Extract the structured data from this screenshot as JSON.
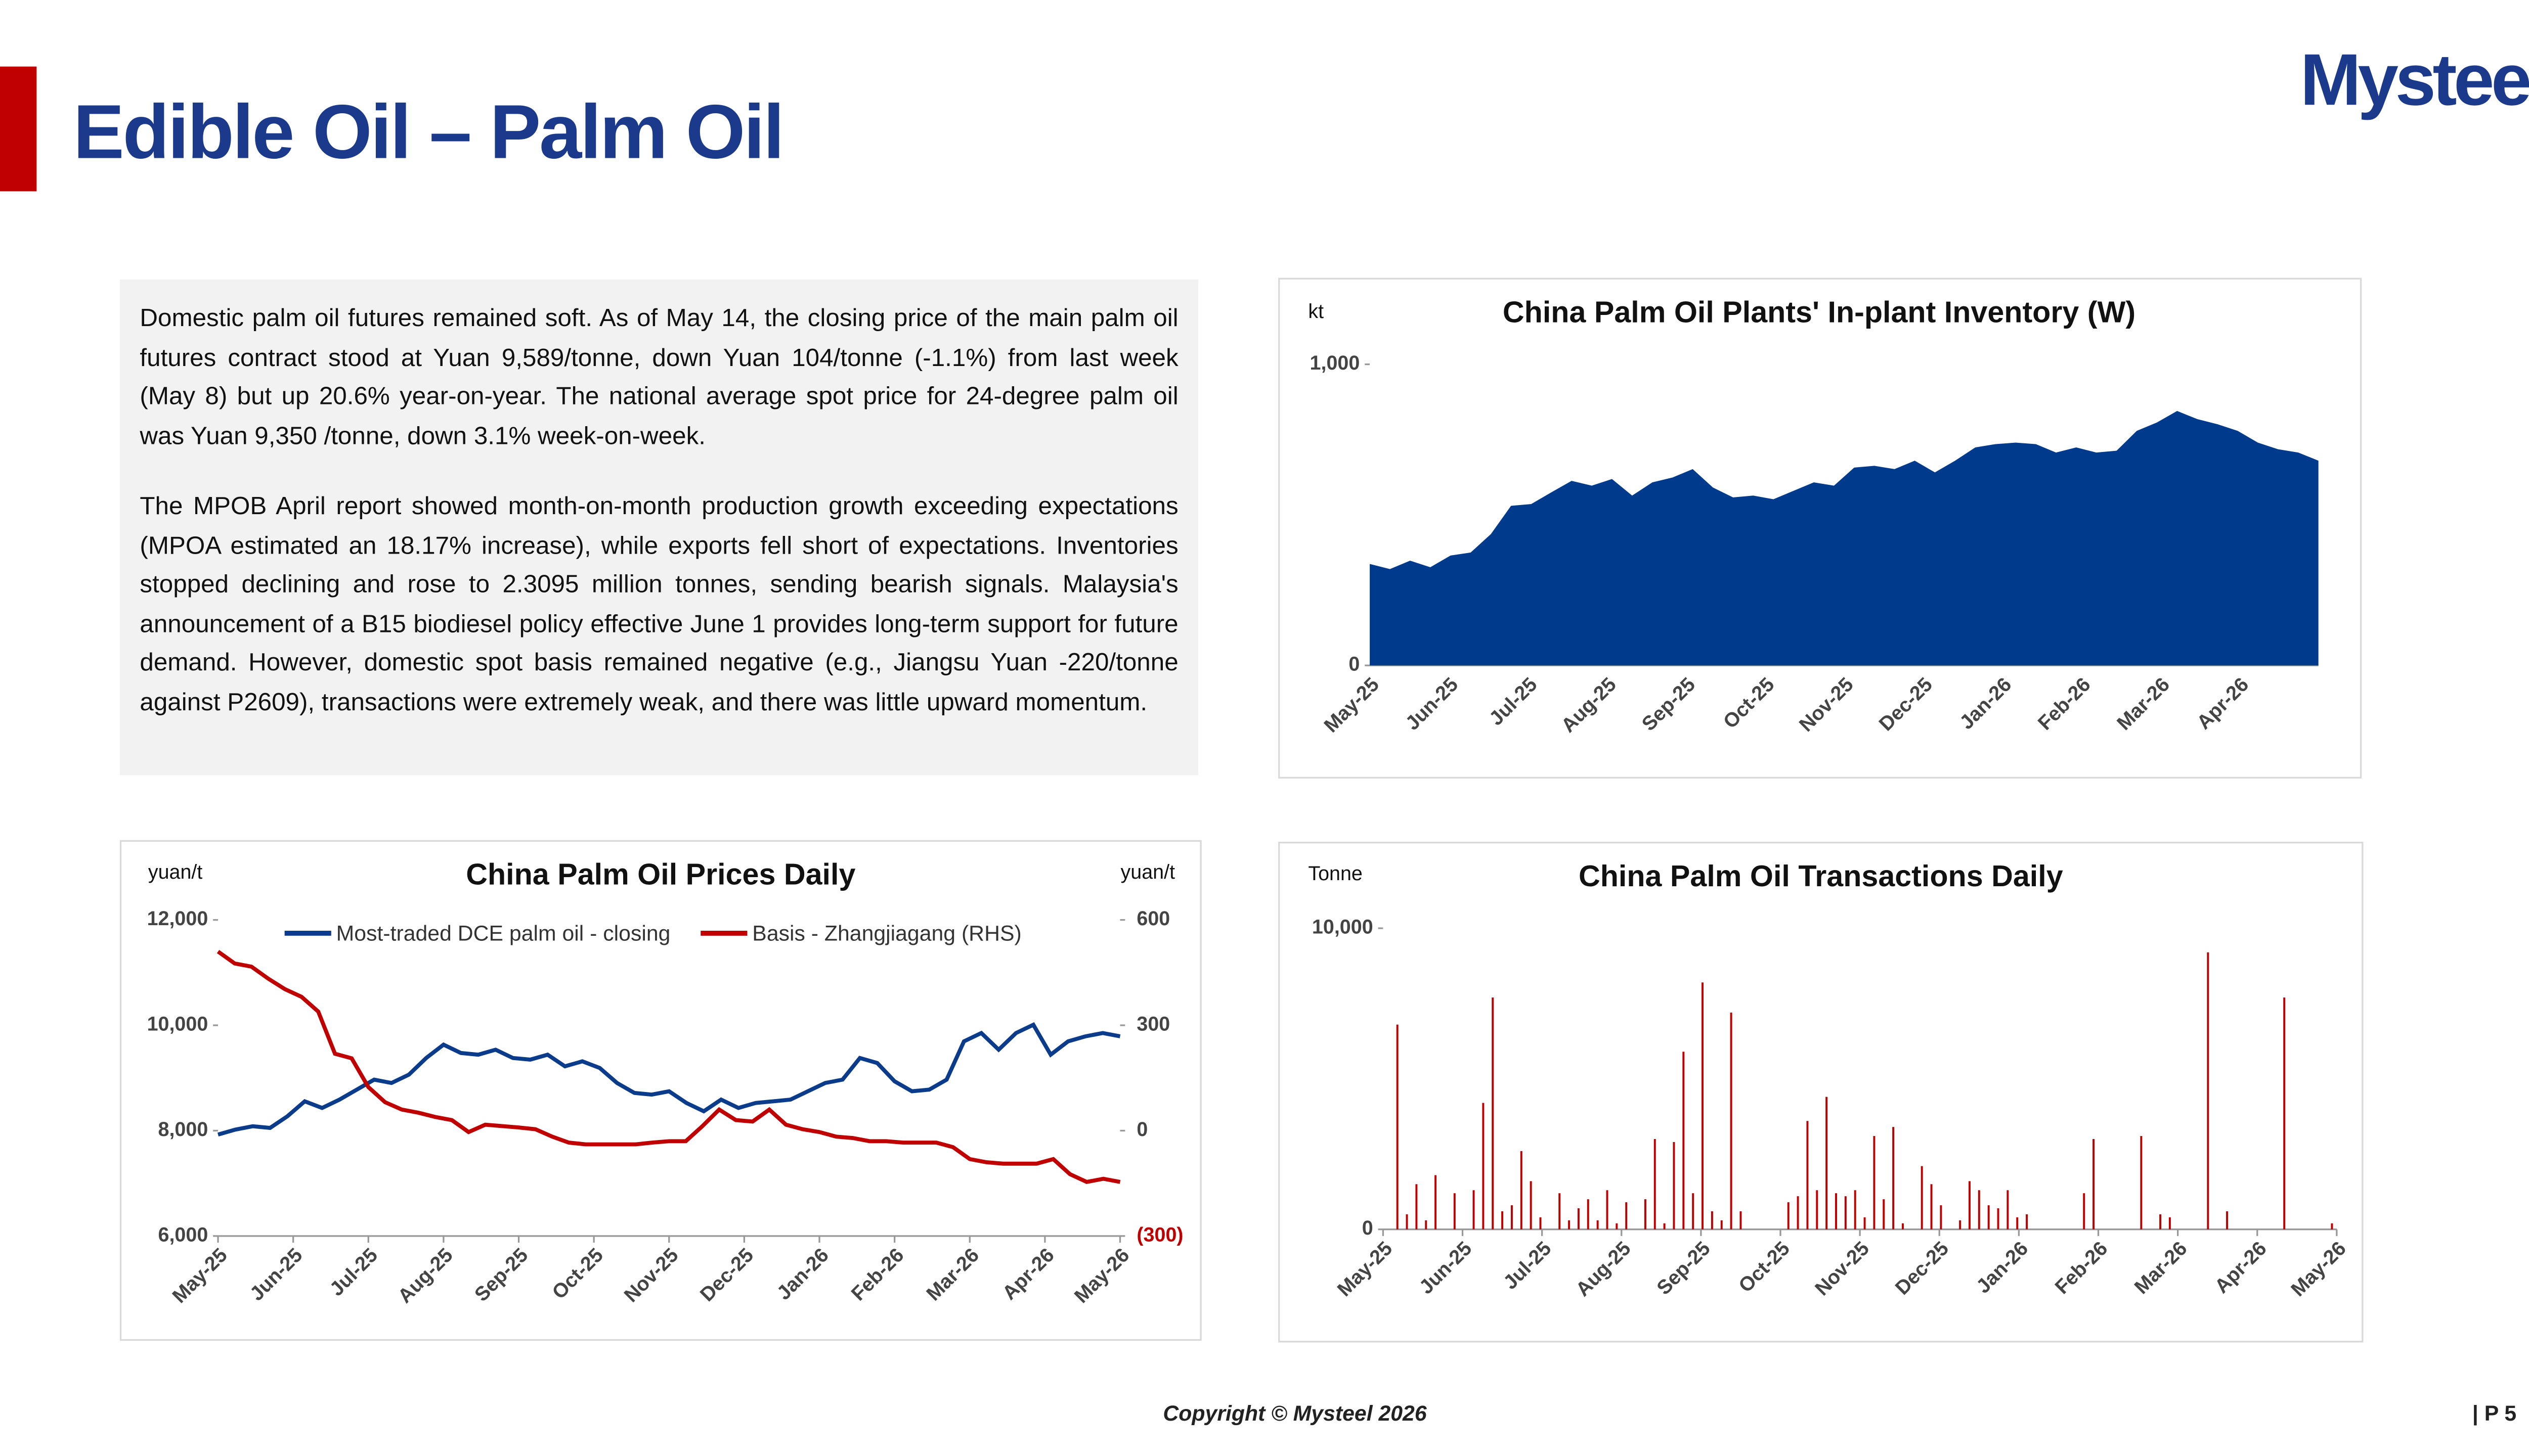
{
  "header": {
    "title": "Edible Oil – Palm Oil",
    "logo": "Mysteel"
  },
  "text": {
    "paragraphs": [
      "Domestic palm oil futures remained soft. As of May 14, the closing price of the main palm oil futures contract stood at Yuan 9,589/tonne, down Yuan 104/tonne (-1.1%) from last week (May 8) but up 20.6% year-on-year. The national average spot price for 24-degree palm oil was Yuan 9,350 /tonne, down 3.1% week-on-week.",
      "The MPOB April report showed month-on-month production growth exceeding expectations (MPOA estimated an 18.17% increase), while exports fell short of expectations. Inventories stopped declining and rose to 2.3095 million tonnes, sending bearish signals. Malaysia's announcement of a B15 biodiesel policy effective June 1 provides long-term support for future demand. However, domestic spot basis remained negative (e.g., Jiangsu Yuan -220/tonne against P2609), transactions were extremely weak, and there was little upward momentum."
    ]
  },
  "chart_data": [
    {
      "type": "area",
      "title": "China Palm Oil Plants' In-plant Inventory (W)",
      "y_label": "kt",
      "xtick_labels": [
        "May-25",
        "Jun-25",
        "Jul-25",
        "Aug-25",
        "Sep-25",
        "Oct-25",
        "Nov-25",
        "Dec-25",
        "Jan-26",
        "Feb-26",
        "Mar-26",
        "Apr-26"
      ],
      "series": [
        {
          "color": "#003a8c",
          "values": [
            337,
            320,
            348,
            326,
            365,
            375,
            436,
            530,
            536,
            575,
            613,
            597,
            619,
            564,
            608,
            624,
            652,
            591,
            558,
            564,
            552,
            580,
            608,
            597,
            657,
            663,
            652,
            680,
            641,
            680,
            724,
            735,
            740,
            735,
            707,
            724,
            707,
            713,
            779,
            807,
            845,
            818,
            801,
            779,
            740,
            718,
            707,
            680
          ]
        }
      ],
      "ylim": [
        0,
        1000
      ],
      "yticks": [
        0,
        {
          "value": 1000,
          "label": "1,000"
        }
      ]
    },
    {
      "type": "line",
      "title": "China Palm Oil Prices Daily",
      "y_label": "yuan/t",
      "y2_label": "yuan/t",
      "xtick_labels": [
        "May-25",
        "Jun-25",
        "Jul-25",
        "Aug-25",
        "Sep-25",
        "Oct-25",
        "Nov-25",
        "Dec-25",
        "Jan-26",
        "Feb-26",
        "Mar-26",
        "Apr-26",
        "May-26"
      ],
      "series": [
        {
          "name": "Most-traded DCE palm oil - closing",
          "color": "#0b3c8c",
          "values": [
            7926,
            8020,
            8084,
            8052,
            8273,
            8557,
            8431,
            8589,
            8779,
            8968,
            8905,
            9063,
            9379,
            9632,
            9474,
            9442,
            9537,
            9379,
            9348,
            9442,
            9221,
            9316,
            9190,
            8905,
            8716,
            8684,
            8747,
            8526,
            8368,
            8589,
            8431,
            8526,
            8557,
            8589,
            8747,
            8905,
            8968,
            9379,
            9284,
            8937,
            8747,
            8779,
            8968,
            9695,
            9853,
            9537,
            9853,
            10010,
            9442,
            9695,
            9790,
            9853,
            9790
          ]
        },
        {
          "name": "Basis - Zhangjiagang (RHS)",
          "color": "#c00000",
          "axis": "y2",
          "values": [
            510,
            476,
            467,
            433,
            403,
            381,
            339,
            219,
            206,
            124,
            81,
            60,
            51,
            39,
            30,
            -4,
            17,
            13,
            9,
            4,
            -17,
            -34,
            -39,
            -39,
            -39,
            -39,
            -34,
            -30,
            -30,
            13,
            60,
            30,
            26,
            60,
            17,
            4,
            -4,
            -17,
            -21,
            -30,
            -30,
            -34,
            -34,
            -34,
            -47,
            -81,
            -90,
            -94,
            -94,
            -94,
            -81,
            -124,
            -146,
            -137,
            -146
          ]
        }
      ],
      "ylim": [
        6000,
        12000
      ],
      "yticks": [
        {
          "value": 6000,
          "label": "6,000"
        },
        {
          "value": 8000,
          "label": "8,000"
        },
        {
          "value": 10000,
          "label": "10,000"
        },
        {
          "value": 12000,
          "label": "12,000"
        }
      ],
      "y2lim": [
        -300,
        600
      ],
      "y2ticks": [
        {
          "value": -300,
          "label": "(300)"
        },
        0,
        300,
        600
      ]
    },
    {
      "type": "bar",
      "title": "China Palm Oil Transactions Daily",
      "y_label": "Tonne",
      "xtick_labels": [
        "May-25",
        "Jun-25",
        "Jul-25",
        "Aug-25",
        "Sep-25",
        "Oct-25",
        "Nov-25",
        "Dec-25",
        "Jan-26",
        "Feb-26",
        "Mar-26",
        "Apr-26",
        "May-26"
      ],
      "series": [
        {
          "color": "#c00000",
          "values": [
            0,
            6800,
            500,
            1500,
            300,
            1800,
            0,
            1200,
            0,
            1300,
            4200,
            7700,
            600,
            800,
            2600,
            1600,
            400,
            0,
            1200,
            300,
            700,
            1000,
            300,
            1300,
            200,
            900,
            0,
            1000,
            3000,
            200,
            2900,
            5900,
            1200,
            8200,
            600,
            300,
            7200,
            600,
            0,
            0,
            0,
            0,
            900,
            1100,
            3600,
            1300,
            4400,
            1200,
            1100,
            1300,
            400,
            3100,
            1000,
            3400,
            200,
            0,
            2100,
            1500,
            800,
            0,
            300,
            1600,
            1300,
            800,
            700,
            1300,
            400,
            500,
            0,
            0,
            0,
            0,
            0,
            1200,
            3000,
            0,
            0,
            0,
            0,
            3100,
            0,
            500,
            400,
            0,
            0,
            0,
            9200,
            0,
            600,
            0,
            0,
            0,
            0,
            0,
            7700,
            0,
            0,
            0,
            0,
            200
          ]
        }
      ],
      "ylim": [
        0,
        10000
      ],
      "yticks": [
        0,
        {
          "value": 10000,
          "label": "10,000"
        }
      ]
    }
  ],
  "footer": {
    "copyright": "Copyright © Mysteel 2026",
    "page": "| P 5"
  }
}
